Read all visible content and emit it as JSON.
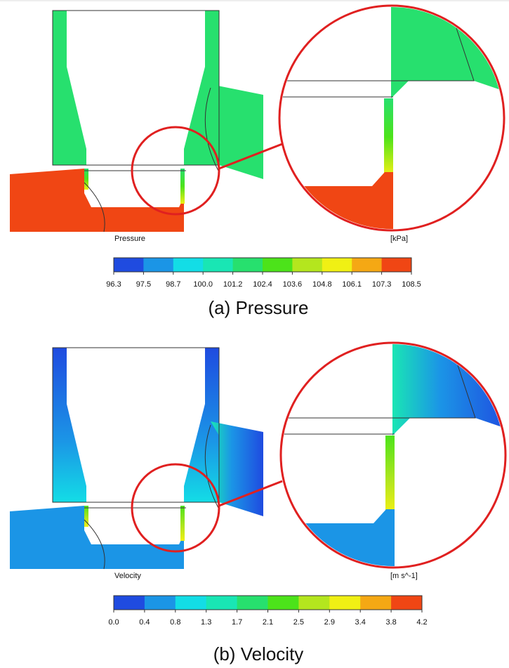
{
  "panels": [
    {
      "field_label": "Pressure",
      "unit": "[kPa]",
      "caption": "(a) Pressure",
      "colorbar": {
        "ticks": [
          "96.3",
          "97.5",
          "98.7",
          "100.0",
          "101.2",
          "102.4",
          "103.6",
          "104.8",
          "106.1",
          "107.3",
          "108.5"
        ],
        "colors": [
          "#1f4be0",
          "#1b95e6",
          "#13dde6",
          "#19e6b4",
          "#27e06e",
          "#4ce31a",
          "#b4e61e",
          "#f0f014",
          "#f5a814",
          "#f04614"
        ]
      }
    },
    {
      "field_label": "Velocity",
      "unit": "[m s^-1]",
      "caption": "(b) Velocity",
      "colorbar": {
        "ticks": [
          "0.0",
          "0.4",
          "0.8",
          "1.3",
          "1.7",
          "2.1",
          "2.5",
          "2.9",
          "3.4",
          "3.8",
          "4.2"
        ],
        "colors": [
          "#1f4be0",
          "#1b95e6",
          "#13dde6",
          "#19e6b4",
          "#27e06e",
          "#4ce31a",
          "#b4e61e",
          "#f0f014",
          "#f5a814",
          "#f04614"
        ]
      }
    }
  ]
}
